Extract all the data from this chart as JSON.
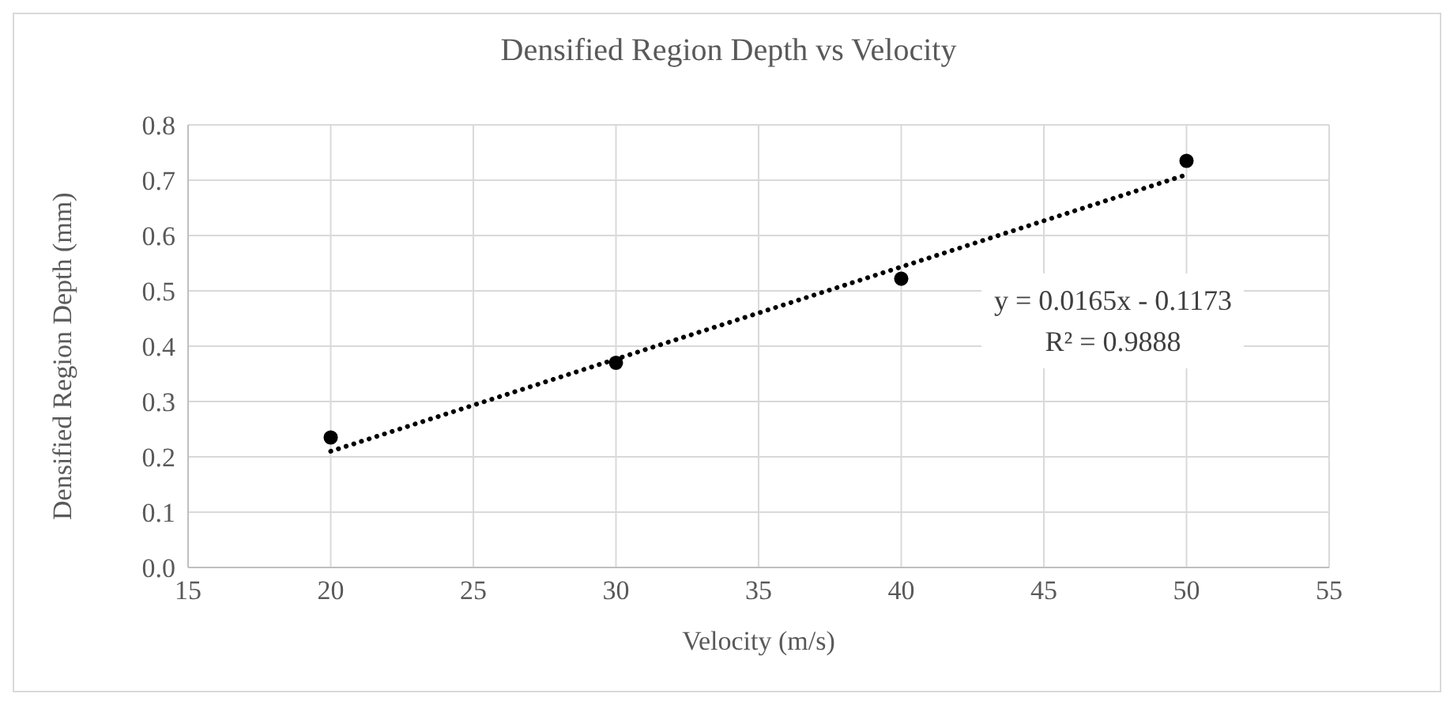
{
  "chart_data": {
    "type": "scatter",
    "title": "Densified Region Depth vs Velocity",
    "xlabel": "Velocity (m/s)",
    "ylabel": "Densified Region Depth (mm)",
    "series": [
      {
        "color": "#000000",
        "x": [
          20,
          30,
          40,
          50
        ],
        "values": [
          0.235,
          0.37,
          0.522,
          0.735
        ],
        "marker": "circle"
      },
      {
        "type": "line",
        "color": "#000000",
        "x": [
          20,
          50
        ],
        "values": [
          0.21,
          0.71
        ],
        "line_style": "dotted",
        "marker": "none"
      }
    ],
    "xlim": [
      15,
      55
    ],
    "xticks": [
      15,
      20,
      25,
      30,
      35,
      40,
      45,
      50,
      55
    ],
    "ylim": [
      0,
      0.8
    ],
    "yticks": [
      {
        "value": 0,
        "label": "0.0"
      },
      0.1,
      0.2,
      0.3,
      0.4,
      0.5,
      0.6,
      0.7,
      0.8
    ],
    "grid": true,
    "annotations": [
      "y = 0.0165x - 0.1173\nR² = 0.9888"
    ]
  }
}
